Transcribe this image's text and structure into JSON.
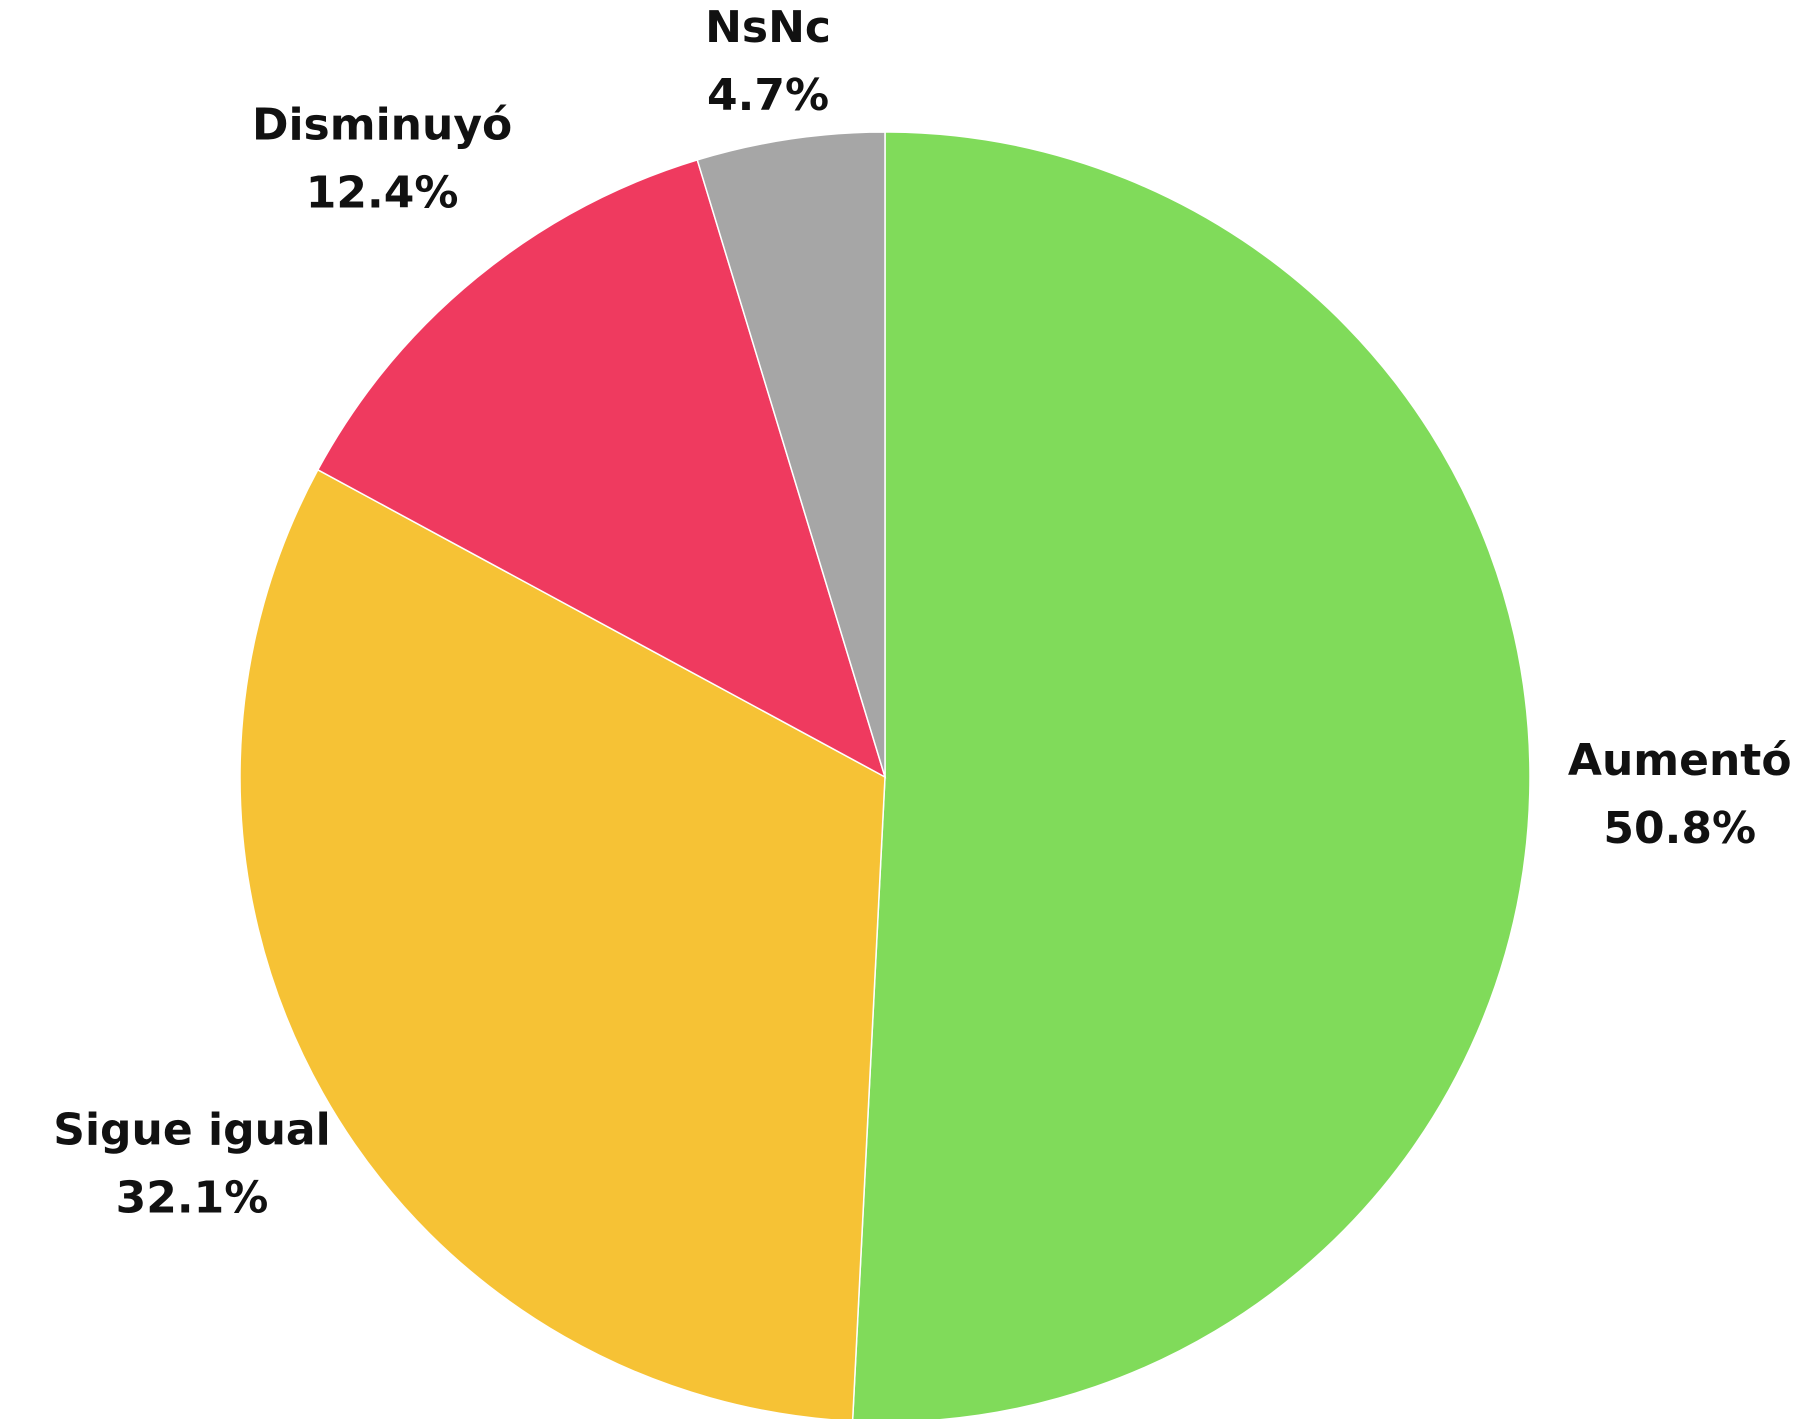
{
  "chart_data": {
    "type": "pie",
    "categories": [
      "Aumentó",
      "Sigue igual",
      "Disminuyó",
      "NsNc"
    ],
    "values": [
      50.8,
      32.1,
      12.4,
      4.7
    ],
    "value_labels": [
      "50.8%",
      "32.1%",
      "12.4%",
      "4.7%"
    ],
    "colors": [
      "#80db5a",
      "#f6c235",
      "#ef3a5f",
      "#a6a6a6"
    ]
  }
}
